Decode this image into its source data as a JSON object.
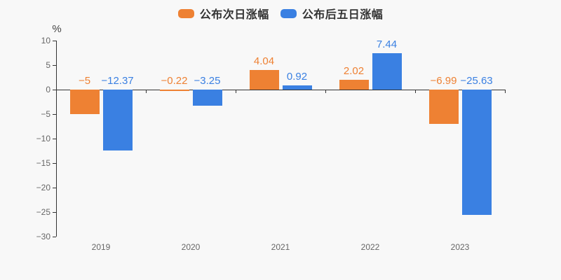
{
  "unit_label": "%",
  "colors": {
    "background": "#f8f8f8",
    "axis": "#333333",
    "tick_text": "#666666",
    "legend_text": "#333333",
    "series_orange": "#ee8133",
    "series_blue": "#3a80e2"
  },
  "chart_data": {
    "type": "bar",
    "title": "",
    "xlabel": "",
    "ylabel": "%",
    "legend_position": "top",
    "grid": false,
    "categories": [
      "2019",
      "2020",
      "2021",
      "2022",
      "2023"
    ],
    "series": [
      {
        "name": "公布次日涨幅",
        "color": "#ee8133",
        "values": [
          -5,
          -0.22,
          4.04,
          2.02,
          -6.99
        ],
        "labels": [
          "−5",
          "−0.22",
          "4.04",
          "2.02",
          "−6.99"
        ]
      },
      {
        "name": "公布后五日涨幅",
        "color": "#3a80e2",
        "values": [
          -12.37,
          -3.25,
          0.92,
          7.44,
          -25.63
        ],
        "labels": [
          "−12.37",
          "−3.25",
          "0.92",
          "7.44",
          "−25.63"
        ]
      }
    ],
    "ylim": [
      -30,
      10
    ],
    "ytick_values": [
      10,
      5,
      0,
      -5,
      -10,
      -15,
      -20,
      -25,
      -30
    ],
    "ytick_labels": [
      "10",
      "5",
      "0",
      "−5",
      "−10",
      "−15",
      "−20",
      "−25",
      "−30"
    ]
  }
}
